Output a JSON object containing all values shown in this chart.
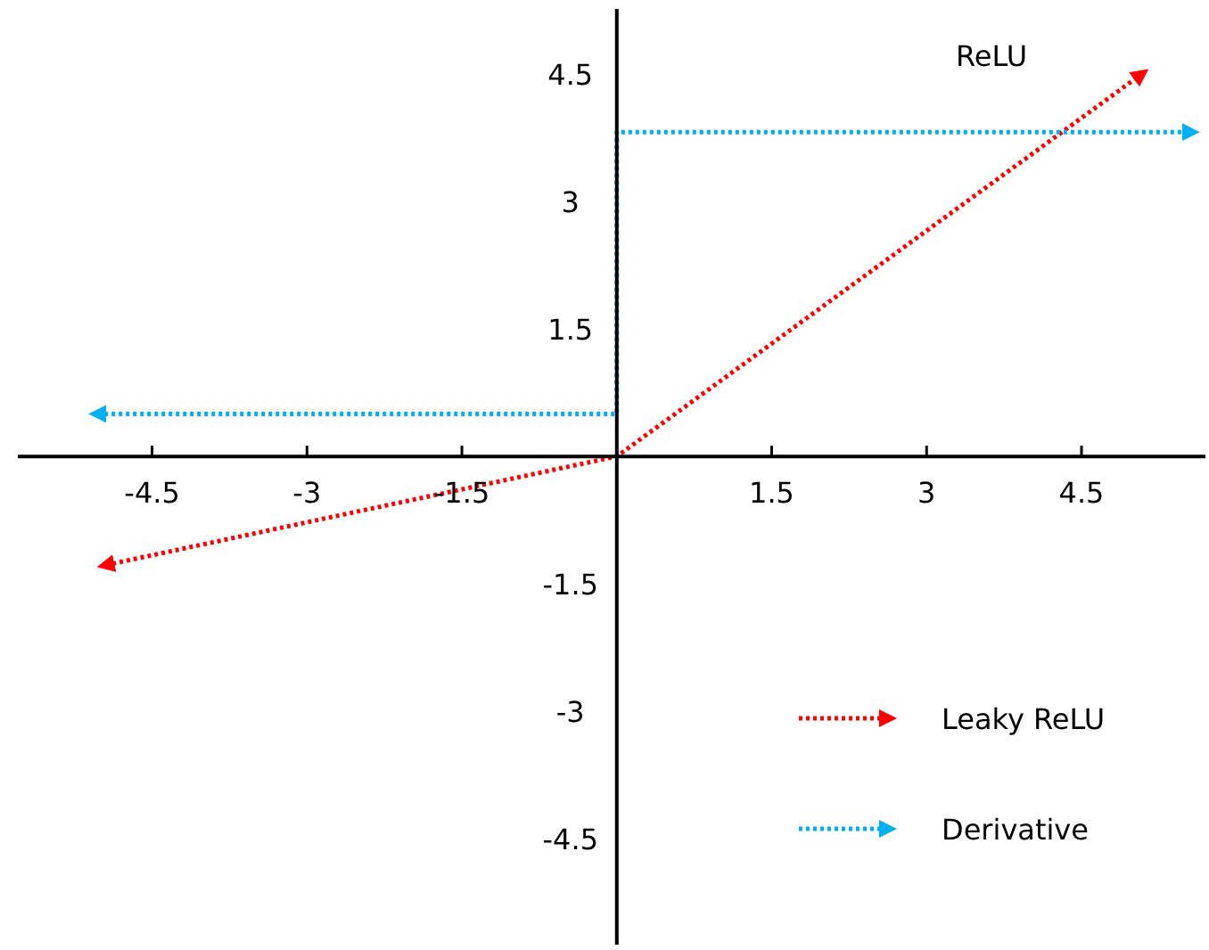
{
  "chart_data": {
    "type": "line",
    "title": "ReLU",
    "xlim": [
      -5.8,
      5.7
    ],
    "ylim": [
      -5.75,
      5.27
    ],
    "xticks": [
      -4.5,
      -3,
      -1.5,
      1.5,
      3,
      4.5
    ],
    "yticks": [
      -4.5,
      -3,
      -1.5,
      1.5,
      3,
      4.5
    ],
    "series": [
      {
        "name": "Leaky ReLU",
        "color": "#ff0000",
        "x": [
          -4.95,
          0,
          5.08
        ],
        "values": [
          -1.28,
          0,
          4.5
        ]
      },
      {
        "name": "Derivative",
        "color": "#00b0f0",
        "x": [
          -5.03,
          0,
          0,
          5.56
        ],
        "values": [
          0.5,
          0.5,
          3.82,
          3.82
        ]
      }
    ],
    "line_style": "dotted",
    "marker": "none",
    "grid": false,
    "legend": "bottom right"
  }
}
